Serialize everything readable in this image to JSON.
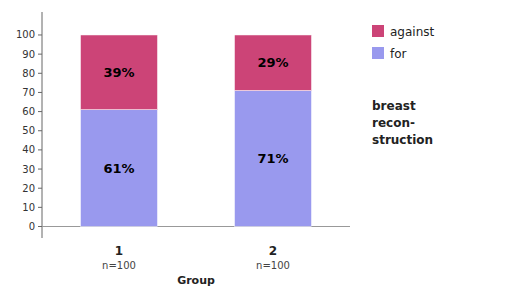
{
  "chart_data": {
    "type": "bar",
    "stacked": true,
    "categories": [
      "1",
      "2"
    ],
    "x_label": "Group",
    "series": [
      {
        "name": "for",
        "color": "#9999EE",
        "values": [
          61,
          71
        ],
        "value_labels": [
          "61%",
          "71%"
        ]
      },
      {
        "name": "against",
        "color": "#CC4477",
        "values": [
          39,
          29
        ],
        "value_labels": [
          "39%",
          "29%"
        ]
      }
    ],
    "data_labels": true,
    "annotations": [
      "n=100",
      "n=100",
      "breast",
      "recon-",
      "struction"
    ],
    "ylim": [
      -6,
      112
    ],
    "yticks": [
      0,
      10,
      20,
      30,
      40,
      50,
      60,
      70,
      80,
      90,
      100
    ],
    "grid": false,
    "legend": "right"
  }
}
